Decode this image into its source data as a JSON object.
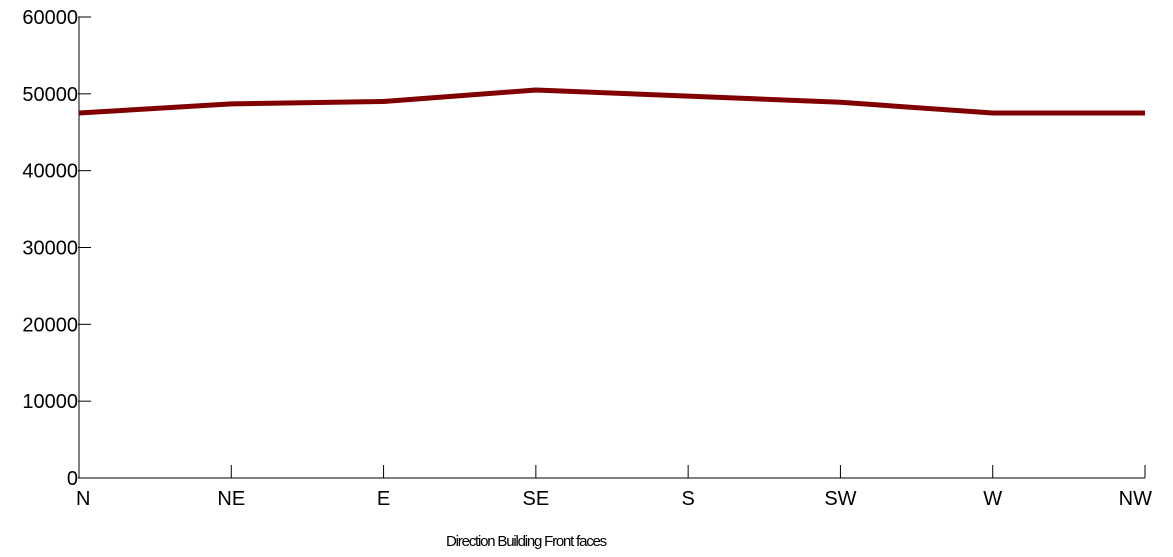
{
  "chart_data": {
    "type": "line",
    "title": "",
    "xlabel": "Direction Building Front faces",
    "ylabel": "",
    "categories": [
      "N",
      "NE",
      "E",
      "SE",
      "S",
      "SW",
      "W",
      "NW"
    ],
    "series": [
      {
        "values": [
          47500,
          48700,
          49000,
          50500,
          49700,
          48900,
          47500,
          47500
        ],
        "color": "#800000"
      }
    ],
    "ylim": [
      0,
      60000
    ],
    "yticks": [
      "0",
      "10000",
      "20000",
      "30000",
      "40000",
      "50000",
      "60000"
    ],
    "grid": false,
    "legend": "none"
  }
}
